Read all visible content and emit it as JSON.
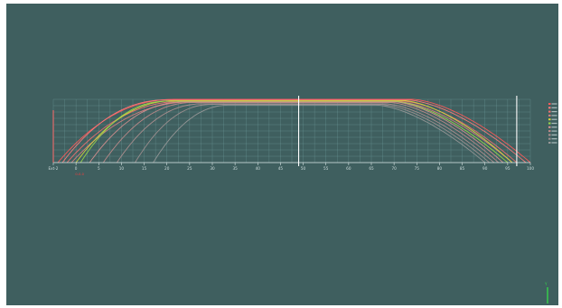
{
  "colors": {
    "background": "#3f5f5f",
    "grid": "#7fb0b0",
    "axis": "#d8e4e4",
    "tick_label": "#cfdede",
    "marker_line": "#ffffff",
    "start_label": "#ff3b3b",
    "triad_y": "#35d34b"
  },
  "axis": {
    "ticks": [
      {
        "label": "Ext-2",
        "t": -5
      },
      {
        "label": "0",
        "t": 0
      },
      {
        "label": "5",
        "t": 5
      },
      {
        "label": "10",
        "t": 10
      },
      {
        "label": "15",
        "t": 15
      },
      {
        "label": "20",
        "t": 20
      },
      {
        "label": "25",
        "t": 25
      },
      {
        "label": "30",
        "t": 30
      },
      {
        "label": "35",
        "t": 35
      },
      {
        "label": "40",
        "t": 40
      },
      {
        "label": "45",
        "t": 45
      },
      {
        "label": "50",
        "t": 50
      },
      {
        "label": "55",
        "t": 55
      },
      {
        "label": "60",
        "t": 60
      },
      {
        "label": "65",
        "t": 65
      },
      {
        "label": "70",
        "t": 70
      },
      {
        "label": "75",
        "t": 75
      },
      {
        "label": "80",
        "t": 80
      },
      {
        "label": "85",
        "t": 85
      },
      {
        "label": "90",
        "t": 90
      },
      {
        "label": "95",
        "t": 95
      },
      {
        "label": "100",
        "t": 100
      }
    ],
    "markers": [
      49,
      97
    ],
    "start_marker_label": "0-0-0"
  },
  "chart_data": {
    "type": "line",
    "x_range": [
      -5,
      100
    ],
    "y_range": [
      0,
      1
    ],
    "curves": [
      {
        "ramp_start": -4,
        "ramp_end": 22,
        "plateau": 1.0,
        "fall_start": 74,
        "fall_end": 100,
        "color": "#ff5a5a"
      },
      {
        "ramp_start": -3,
        "ramp_end": 20,
        "plateau": 0.99,
        "fall_start": 73,
        "fall_end": 99,
        "color": "#ff7a7a"
      },
      {
        "ramp_start": -2,
        "ramp_end": 24,
        "plateau": 0.97,
        "fall_start": 72,
        "fall_end": 97,
        "color": "#f07070"
      },
      {
        "ramp_start": -1,
        "ramp_end": 26,
        "plateau": 0.96,
        "fall_start": 71,
        "fall_end": 96,
        "color": "#d88080"
      },
      {
        "ramp_start": 0,
        "ramp_end": 22,
        "plateau": 0.98,
        "fall_start": 72,
        "fall_end": 96,
        "color": "#d8d83a"
      },
      {
        "ramp_start": 1,
        "ramp_end": 20,
        "plateau": 0.97,
        "fall_start": 70,
        "fall_end": 95,
        "color": "#9ad84a"
      },
      {
        "ramp_start": 3,
        "ramp_end": 24,
        "plateau": 0.96,
        "fall_start": 70,
        "fall_end": 94,
        "color": "#d89090"
      },
      {
        "ramp_start": 6,
        "ramp_end": 26,
        "plateau": 0.95,
        "fall_start": 69,
        "fall_end": 93,
        "color": "#c08a8a"
      },
      {
        "ramp_start": 9,
        "ramp_end": 28,
        "plateau": 0.93,
        "fall_start": 68,
        "fall_end": 92,
        "color": "#b09090"
      },
      {
        "ramp_start": 13,
        "ramp_end": 30,
        "plateau": 0.92,
        "fall_start": 67,
        "fall_end": 91,
        "color": "#a09090"
      },
      {
        "ramp_start": 17,
        "ramp_end": 34,
        "plateau": 0.91,
        "fall_start": 66,
        "fall_end": 90,
        "color": "#989898"
      }
    ]
  }
}
